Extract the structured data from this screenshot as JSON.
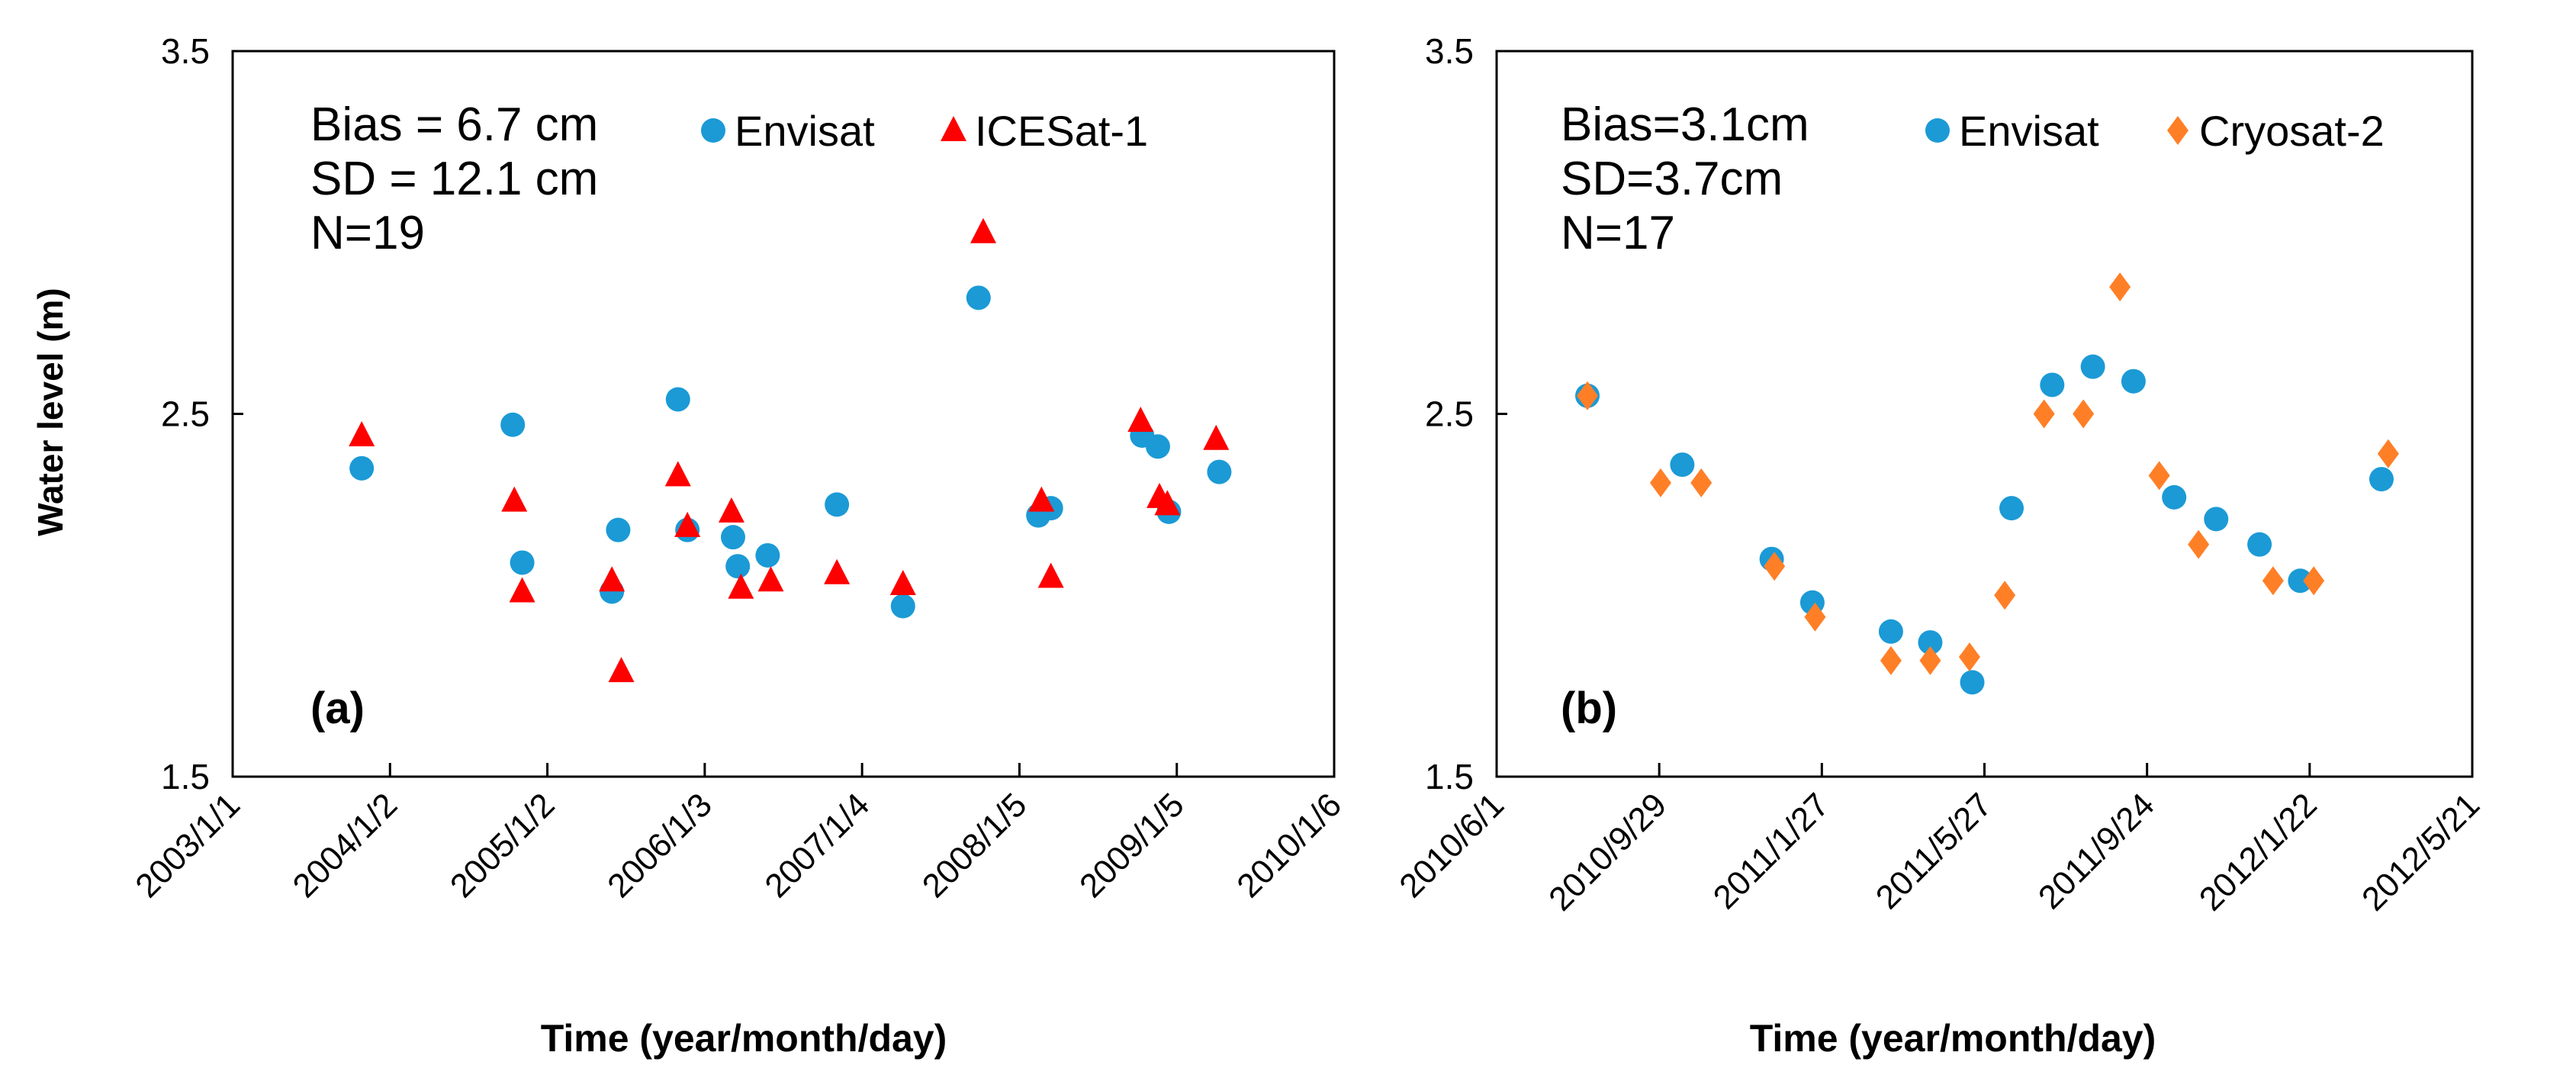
{
  "y_axis_label": "Water level (m)",
  "chart_data": [
    {
      "type": "scatter",
      "panel_label": "(a)",
      "xlabel": "Time (year/month/day)",
      "ylabel": "Water level (m)",
      "x_unit": "decimal year",
      "xlim": [
        2003.0,
        2010.0
      ],
      "xticks": [
        2003,
        2004,
        2005,
        2006,
        2007,
        2008,
        2009,
        2010
      ],
      "xtick_labels": [
        "2003/1/1",
        "2004/1/2",
        "2005/1/2",
        "2006/1/3",
        "2007/1/4",
        "2008/1/5",
        "2009/1/5",
        "2010/1/6"
      ],
      "ylim": [
        1.5,
        3.5
      ],
      "yticks": [
        1.5,
        2.5,
        3.5
      ],
      "ytick_labels": [
        "1.5",
        "2.5",
        "3.5"
      ],
      "stats": [
        "Bias = 6.7 cm",
        "SD = 12.1 cm",
        "N=19"
      ],
      "legend_position": "top-right",
      "series": [
        {
          "name": "Envisat",
          "marker": "circle",
          "color": "#1b9ad6",
          "x": [
            2003.82,
            2004.78,
            2004.84,
            2005.41,
            2005.45,
            2005.83,
            2005.89,
            2006.18,
            2006.21,
            2006.4,
            2006.84,
            2007.26,
            2007.74,
            2008.12,
            2008.2,
            2008.78,
            2008.88,
            2008.95,
            2009.27
          ],
          "y": [
            2.35,
            2.47,
            2.09,
            2.01,
            2.18,
            2.54,
            2.18,
            2.16,
            2.08,
            2.11,
            2.25,
            1.97,
            2.82,
            2.22,
            2.24,
            2.44,
            2.41,
            2.23,
            2.34
          ]
        },
        {
          "name": "ICESat-1",
          "marker": "triangle",
          "color": "#ff0000",
          "x": [
            2003.82,
            2004.79,
            2004.84,
            2005.41,
            2005.47,
            2005.83,
            2005.89,
            2006.17,
            2006.23,
            2006.42,
            2006.84,
            2007.26,
            2007.77,
            2008.14,
            2008.2,
            2008.77,
            2008.89,
            2008.94,
            2009.25
          ],
          "y": [
            2.44,
            2.26,
            2.01,
            2.04,
            1.79,
            2.33,
            2.19,
            2.23,
            2.02,
            2.04,
            2.06,
            2.03,
            3.0,
            2.26,
            2.05,
            2.48,
            2.27,
            2.25,
            2.43
          ]
        }
      ]
    },
    {
      "type": "scatter",
      "panel_label": "(b)",
      "xlabel": "Time (year/month/day)",
      "ylabel": "",
      "x_unit": "days since 2010/6/1",
      "xlim": [
        0,
        720
      ],
      "xticks": [
        0,
        120,
        240,
        360,
        480,
        600,
        720
      ],
      "xtick_labels": [
        "2010/6/1",
        "2010/9/29",
        "2011/1/27",
        "2011/5/27",
        "2011/9/24",
        "2012/1/22",
        "2012/5/21"
      ],
      "ylim": [
        1.5,
        3.5
      ],
      "yticks": [
        1.5,
        2.5,
        3.5
      ],
      "ytick_labels": [
        "1.5",
        "2.5",
        "3.5"
      ],
      "stats": [
        "Bias=3.1cm",
        "SD=3.7cm",
        "N=17"
      ],
      "legend_position": "top-right",
      "series": [
        {
          "name": "Envisat",
          "marker": "circle",
          "color": "#1b9ad6",
          "x": [
            67,
            137,
            203,
            233,
            291,
            320,
            351,
            380,
            410,
            440,
            470,
            500,
            531,
            563,
            593,
            653
          ],
          "y": [
            2.55,
            2.36,
            2.1,
            1.98,
            1.9,
            1.87,
            1.76,
            2.24,
            2.58,
            2.63,
            2.59,
            2.27,
            2.21,
            2.14,
            2.04,
            2.32
          ]
        },
        {
          "name": "Cryosat-2",
          "marker": "diamond",
          "color": "#ff7f27",
          "x": [
            67,
            121,
            151,
            205,
            235,
            291,
            320,
            349,
            375,
            404,
            433,
            460,
            489,
            518,
            573,
            603,
            658
          ],
          "y": [
            2.55,
            2.31,
            2.31,
            2.08,
            1.94,
            1.82,
            1.82,
            1.83,
            2.0,
            2.5,
            2.5,
            2.85,
            2.33,
            2.14,
            2.04,
            2.04,
            2.39
          ]
        }
      ]
    }
  ]
}
